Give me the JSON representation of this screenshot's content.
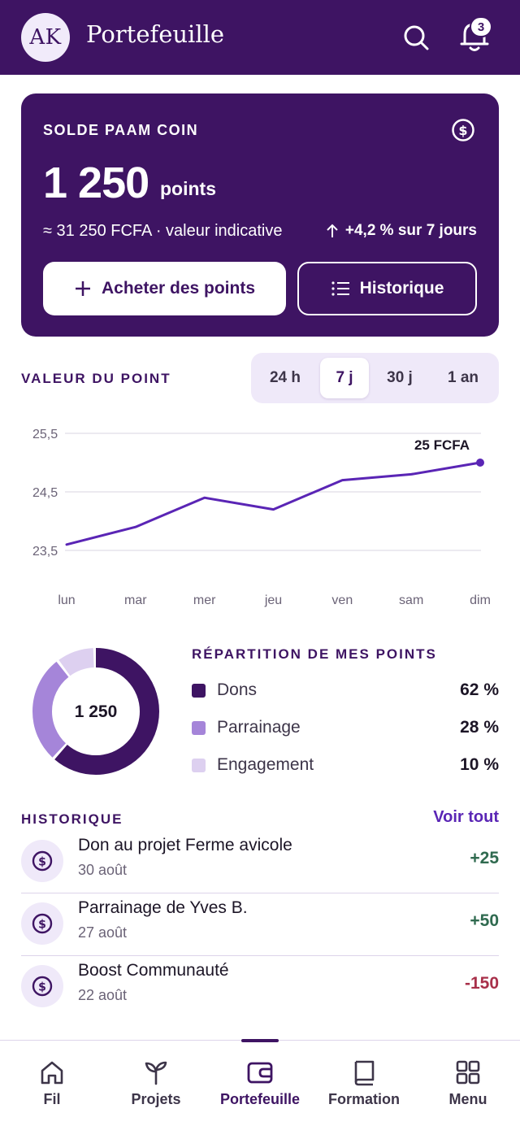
{
  "header": {
    "avatar_initials": "AK",
    "title": "Portefeuille",
    "notification_count": "3"
  },
  "balance": {
    "label": "SOLDE PAAM COIN",
    "amount": "1 250",
    "unit": "points",
    "fcfa_value": "≈ 31 250 FCFA · valeur indicative",
    "trend": "+4,2 % sur 7 jours",
    "buy_label": "Acheter des points",
    "history_label": "Historique"
  },
  "point_value": {
    "title": "VALEUR DU POINT",
    "periods": [
      "24 h",
      "7 j",
      "30 j",
      "1 an"
    ],
    "active_period": "7 j"
  },
  "chart_data": {
    "type": "line",
    "categories": [
      "lun",
      "mar",
      "mer",
      "jeu",
      "ven",
      "sam",
      "dim"
    ],
    "values": [
      23.6,
      23.9,
      24.4,
      24.2,
      24.7,
      24.8,
      25.0
    ],
    "y_ticks": [
      "25,5",
      "24,5",
      "23,5"
    ],
    "ylim": [
      23.5,
      25.5
    ],
    "last_label": "25 FCFA",
    "grid": true,
    "line_color": "#5a25b5"
  },
  "distribution": {
    "title": "RÉPARTITION DE MES POINTS",
    "center_label": "1 250",
    "items": [
      {
        "name": "Dons",
        "pct": "62 %",
        "value": 62,
        "color": "#3e1463"
      },
      {
        "name": "Parrainage",
        "pct": "28 %",
        "value": 28,
        "color": "#a585d9"
      },
      {
        "name": "Engagement",
        "pct": "10 %",
        "value": 10,
        "color": "#ddd0f0"
      }
    ]
  },
  "history": {
    "title": "HISTORIQUE",
    "see_all": "Voir tout",
    "rows": [
      {
        "title": "Don au projet Ferme avicole",
        "date": "30 août",
        "amount": "+25"
      },
      {
        "title": "Parrainage de Yves B.",
        "date": "27 août",
        "amount": "+50"
      },
      {
        "title": "Boost Communauté",
        "date": "22 août",
        "amount": "-150"
      }
    ]
  },
  "nav": {
    "items": [
      "Fil",
      "Projets",
      "Portefeuille",
      "Formation",
      "Menu"
    ],
    "active": "Portefeuille"
  },
  "colors": {
    "brand": "#3e1463",
    "accent": "#5a25b5",
    "positive": "#2f6a4f",
    "negative": "#a8304a"
  }
}
